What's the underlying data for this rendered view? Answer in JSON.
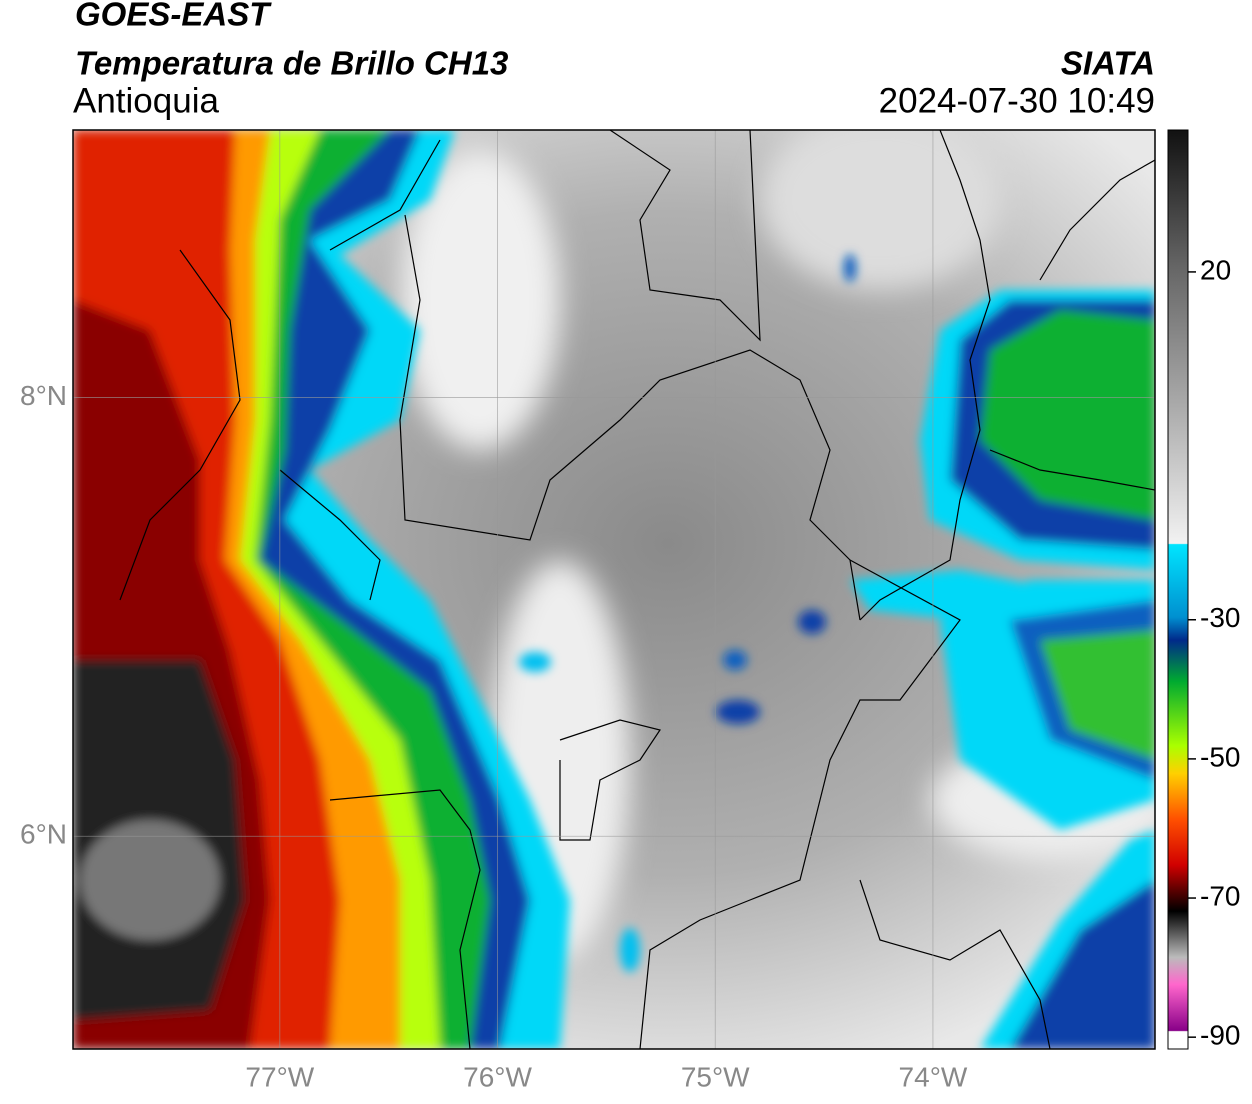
{
  "header": {
    "title": "GOES-EAST",
    "subtitle": "Temperatura de Brillo CH13",
    "region": "Antioquia",
    "source": "SIATA",
    "datetime": "2024-07-30 10:49"
  },
  "map": {
    "latlim": [
      5.03,
      9.22
    ],
    "lonlim": [
      -77.95,
      -72.98
    ],
    "lat_ticks": [
      {
        "value": 8,
        "label": "8°N"
      },
      {
        "value": 6,
        "label": "6°N"
      }
    ],
    "lon_ticks": [
      {
        "value": -77,
        "label": "77°W"
      },
      {
        "value": -76,
        "label": "76°W"
      },
      {
        "value": -75,
        "label": "75°W"
      },
      {
        "value": -74,
        "label": "74°W"
      }
    ],
    "grid": true
  },
  "colorbar": {
    "lim": [
      -91.7,
      40.4
    ],
    "ticks": [
      20,
      -30,
      -50,
      -70,
      -90
    ]
  }
}
